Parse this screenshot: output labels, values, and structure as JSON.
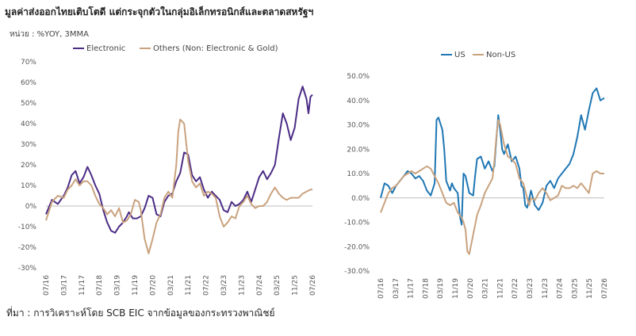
{
  "header": {
    "title": "มูลค่าส่งออกไทยเติบโตดี  แต่กระจุกตัวในกลุ่มอิเล็กทรอนิกส์และตลาดสหรัฐฯ",
    "unit": "หน่วย : %YOY, 3MMA"
  },
  "footer": {
    "source": "ที่มา : การวิเคราะห์โดย SCB EIC จากข้อมูลของกระทรวงพาณิชย์"
  },
  "colors": {
    "electronic": "#4B2C85",
    "others": "#C9A27E",
    "us": "#1F77B4",
    "non_us": "#C9A27E"
  },
  "chart_data": [
    {
      "type": "line",
      "ylim": [
        -30,
        70
      ],
      "yticks": [
        "-30%",
        "-20%",
        "-10%",
        "0%",
        "10%",
        "20%",
        "30%",
        "40%",
        "50%",
        "60%",
        "70%"
      ],
      "xticks": [
        "07/16",
        "03/17",
        "11/17",
        "07/18",
        "03/19",
        "11/19",
        "07/20",
        "03/21",
        "11/21",
        "07/22",
        "03/23",
        "11/23",
        "07/24",
        "03/25",
        "11/25",
        "07/26"
      ],
      "grid": false,
      "legend_position": "top",
      "series": [
        {
          "name": "Electronic",
          "points": [
            [
              0,
              -4
            ],
            [
              3,
              3
            ],
            [
              6,
              1
            ],
            [
              9,
              5
            ],
            [
              11,
              9
            ],
            [
              13,
              15
            ],
            [
              15,
              17
            ],
            [
              17,
              11
            ],
            [
              19,
              14
            ],
            [
              21,
              19
            ],
            [
              23,
              15
            ],
            [
              25,
              10
            ],
            [
              27,
              6
            ],
            [
              29,
              -2
            ],
            [
              31,
              -8
            ],
            [
              33,
              -12
            ],
            [
              35,
              -13
            ],
            [
              37,
              -10
            ],
            [
              39,
              -8
            ],
            [
              41,
              -5
            ],
            [
              42,
              -3
            ],
            [
              44,
              -6
            ],
            [
              46,
              -6
            ],
            [
              48,
              -5
            ],
            [
              50,
              -1
            ],
            [
              52,
              5
            ],
            [
              54,
              4
            ],
            [
              56,
              -4
            ],
            [
              58,
              -5
            ],
            [
              60,
              2
            ],
            [
              62,
              5
            ],
            [
              64,
              6
            ],
            [
              66,
              12
            ],
            [
              68,
              16
            ],
            [
              70,
              26
            ],
            [
              72,
              25
            ],
            [
              74,
              15
            ],
            [
              76,
              12
            ],
            [
              78,
              14
            ],
            [
              80,
              8
            ],
            [
              82,
              4
            ],
            [
              84,
              7
            ],
            [
              86,
              5
            ],
            [
              88,
              3
            ],
            [
              90,
              -2
            ],
            [
              92,
              -3
            ],
            [
              94,
              2
            ],
            [
              96,
              0
            ],
            [
              98,
              1
            ],
            [
              100,
              3
            ],
            [
              102,
              7
            ],
            [
              104,
              2
            ],
            [
              106,
              8
            ],
            [
              108,
              14
            ],
            [
              110,
              17
            ],
            [
              112,
              13
            ],
            [
              114,
              16
            ],
            [
              116,
              20
            ],
            [
              118,
              33
            ],
            [
              120,
              45
            ],
            [
              122,
              40
            ],
            [
              124,
              32
            ],
            [
              126,
              38
            ],
            [
              128,
              52
            ],
            [
              130,
              58
            ],
            [
              132,
              52
            ],
            [
              133,
              45
            ],
            [
              134,
              53
            ],
            [
              135,
              54
            ]
          ]
        },
        {
          "name": "Others (Non: Electronic & Gold)",
          "points": [
            [
              0,
              -7
            ],
            [
              3,
              2
            ],
            [
              6,
              5
            ],
            [
              9,
              4
            ],
            [
              11,
              8
            ],
            [
              13,
              10
            ],
            [
              15,
              13
            ],
            [
              17,
              10
            ],
            [
              19,
              12
            ],
            [
              21,
              12
            ],
            [
              23,
              10
            ],
            [
              25,
              5
            ],
            [
              27,
              1
            ],
            [
              29,
              -1
            ],
            [
              31,
              -4
            ],
            [
              33,
              -2
            ],
            [
              35,
              -5
            ],
            [
              37,
              -1
            ],
            [
              39,
              -8
            ],
            [
              41,
              -7
            ],
            [
              43,
              -4
            ],
            [
              45,
              3
            ],
            [
              47,
              2
            ],
            [
              48,
              -2
            ],
            [
              50,
              -16
            ],
            [
              52,
              -23
            ],
            [
              54,
              -16
            ],
            [
              56,
              -8
            ],
            [
              58,
              -4
            ],
            [
              60,
              4
            ],
            [
              62,
              7
            ],
            [
              64,
              4
            ],
            [
              66,
              20
            ],
            [
              67,
              36
            ],
            [
              68,
              42
            ],
            [
              70,
              40
            ],
            [
              72,
              22
            ],
            [
              74,
              12
            ],
            [
              76,
              9
            ],
            [
              78,
              11
            ],
            [
              80,
              5
            ],
            [
              82,
              7
            ],
            [
              84,
              6
            ],
            [
              86,
              4
            ],
            [
              88,
              -5
            ],
            [
              90,
              -10
            ],
            [
              92,
              -8
            ],
            [
              94,
              -5
            ],
            [
              96,
              -6
            ],
            [
              98,
              0
            ],
            [
              100,
              2
            ],
            [
              102,
              5
            ],
            [
              104,
              1
            ],
            [
              106,
              -1
            ],
            [
              108,
              0
            ],
            [
              110,
              0
            ],
            [
              112,
              2
            ],
            [
              114,
              6
            ],
            [
              116,
              9
            ],
            [
              118,
              6
            ],
            [
              120,
              4
            ],
            [
              122,
              3
            ],
            [
              124,
              4
            ],
            [
              126,
              4
            ],
            [
              128,
              4
            ],
            [
              130,
              6
            ],
            [
              132,
              7
            ],
            [
              134,
              8
            ],
            [
              135,
              8
            ]
          ]
        }
      ]
    },
    {
      "type": "line",
      "ylim": [
        -30,
        50
      ],
      "yticks": [
        "-30.0%",
        "-20.0%",
        "-10.0%",
        "0.0%",
        "10.0%",
        "20.0%",
        "30.0%",
        "40.0%",
        "50.0%"
      ],
      "xticks": [
        "07/16",
        "03/17",
        "11/17",
        "07/18",
        "03/19",
        "11/19",
        "07/20",
        "03/21",
        "11/21",
        "07/22",
        "03/23",
        "11/23",
        "07/24",
        "03/25",
        "11/25",
        "07/26"
      ],
      "grid": false,
      "legend_position": "top",
      "series": [
        {
          "name": "US",
          "points": [
            [
              0,
              0
            ],
            [
              2,
              6
            ],
            [
              4,
              5
            ],
            [
              6,
              2
            ],
            [
              8,
              5
            ],
            [
              10,
              7
            ],
            [
              12,
              9
            ],
            [
              14,
              11
            ],
            [
              16,
              10
            ],
            [
              18,
              8
            ],
            [
              20,
              9
            ],
            [
              22,
              7
            ],
            [
              24,
              3
            ],
            [
              26,
              1
            ],
            [
              28,
              6
            ],
            [
              29,
              32
            ],
            [
              30,
              33
            ],
            [
              32,
              28
            ],
            [
              33,
              20
            ],
            [
              34,
              7
            ],
            [
              36,
              3
            ],
            [
              37,
              6
            ],
            [
              38,
              4
            ],
            [
              40,
              2
            ],
            [
              41,
              -7
            ],
            [
              42,
              -11
            ],
            [
              43,
              10
            ],
            [
              44,
              9
            ],
            [
              46,
              2
            ],
            [
              48,
              1
            ],
            [
              49,
              9
            ],
            [
              50,
              16
            ],
            [
              52,
              17
            ],
            [
              54,
              12
            ],
            [
              56,
              15
            ],
            [
              58,
              11
            ],
            [
              59,
              13
            ],
            [
              60,
              24
            ],
            [
              61,
              34
            ],
            [
              62,
              28
            ],
            [
              63,
              20
            ],
            [
              64,
              18
            ],
            [
              66,
              22
            ],
            [
              68,
              15
            ],
            [
              70,
              17
            ],
            [
              72,
              12
            ],
            [
              73,
              5
            ],
            [
              74,
              4
            ],
            [
              75,
              -3
            ],
            [
              76,
              -4
            ],
            [
              78,
              3
            ],
            [
              80,
              -3
            ],
            [
              82,
              -5
            ],
            [
              84,
              -2
            ],
            [
              86,
              5
            ],
            [
              88,
              7
            ],
            [
              90,
              4
            ],
            [
              92,
              8
            ],
            [
              94,
              10
            ],
            [
              96,
              12
            ],
            [
              98,
              14
            ],
            [
              100,
              18
            ],
            [
              102,
              25
            ],
            [
              104,
              34
            ],
            [
              106,
              28
            ],
            [
              108,
              36
            ],
            [
              110,
              43
            ],
            [
              112,
              45
            ],
            [
              114,
              40
            ],
            [
              116,
              41
            ]
          ]
        },
        {
          "name": "Non-US",
          "points": [
            [
              0,
              -6
            ],
            [
              2,
              -2
            ],
            [
              4,
              2
            ],
            [
              6,
              4
            ],
            [
              8,
              5
            ],
            [
              10,
              7
            ],
            [
              12,
              9
            ],
            [
              14,
              10
            ],
            [
              16,
              11
            ],
            [
              18,
              10
            ],
            [
              20,
              11
            ],
            [
              22,
              12
            ],
            [
              24,
              13
            ],
            [
              26,
              12
            ],
            [
              28,
              9
            ],
            [
              30,
              6
            ],
            [
              32,
              2
            ],
            [
              34,
              -2
            ],
            [
              36,
              -3
            ],
            [
              38,
              -2
            ],
            [
              40,
              -6
            ],
            [
              42,
              -8
            ],
            [
              43,
              -10
            ],
            [
              44,
              -13
            ],
            [
              45,
              -22
            ],
            [
              46,
              -23
            ],
            [
              48,
              -15
            ],
            [
              50,
              -7
            ],
            [
              52,
              -3
            ],
            [
              54,
              2
            ],
            [
              56,
              5
            ],
            [
              58,
              8
            ],
            [
              59,
              15
            ],
            [
              60,
              25
            ],
            [
              61,
              32
            ],
            [
              62,
              30
            ],
            [
              64,
              22
            ],
            [
              66,
              17
            ],
            [
              68,
              16
            ],
            [
              70,
              14
            ],
            [
              72,
              8
            ],
            [
              74,
              6
            ],
            [
              75,
              3
            ],
            [
              76,
              0
            ],
            [
              77,
              -3
            ],
            [
              78,
              0
            ],
            [
              80,
              -1
            ],
            [
              82,
              2
            ],
            [
              84,
              4
            ],
            [
              86,
              2
            ],
            [
              88,
              -1
            ],
            [
              90,
              0
            ],
            [
              92,
              1
            ],
            [
              94,
              5
            ],
            [
              96,
              4
            ],
            [
              98,
              4
            ],
            [
              100,
              5
            ],
            [
              102,
              4
            ],
            [
              104,
              6
            ],
            [
              106,
              4
            ],
            [
              108,
              2
            ],
            [
              110,
              10
            ],
            [
              112,
              11
            ],
            [
              114,
              10
            ],
            [
              116,
              10
            ]
          ]
        }
      ]
    }
  ]
}
